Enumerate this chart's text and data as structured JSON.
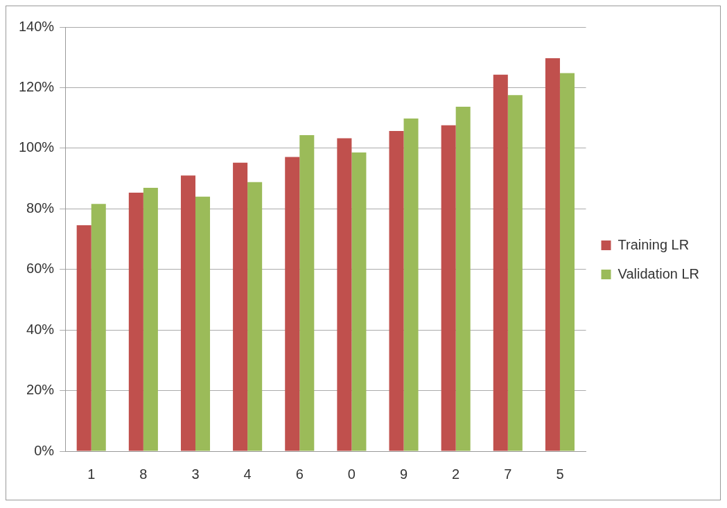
{
  "chart_data": {
    "type": "bar",
    "categories": [
      "1",
      "8",
      "3",
      "4",
      "6",
      "0",
      "9",
      "2",
      "7",
      "5"
    ],
    "series": [
      {
        "name": "Training LR",
        "color": "#c0504d",
        "values": [
          74.6,
          85.3,
          91.0,
          95.2,
          97.1,
          103.3,
          105.7,
          107.6,
          124.3,
          129.7
        ]
      },
      {
        "name": "Validation LR",
        "color": "#9bbb59",
        "values": [
          81.6,
          86.9,
          84.0,
          88.8,
          104.3,
          98.6,
          109.8,
          113.7,
          117.5,
          124.8
        ]
      }
    ],
    "ylim": [
      0,
      140
    ],
    "yticks": [
      {
        "value": 0,
        "label": "0%"
      },
      {
        "value": 20,
        "label": "20%"
      },
      {
        "value": 40,
        "label": "40%"
      },
      {
        "value": 60,
        "label": "60%"
      },
      {
        "value": 80,
        "label": "80%"
      },
      {
        "value": 100,
        "label": "100%"
      },
      {
        "value": 120,
        "label": "120%"
      },
      {
        "value": 140,
        "label": "140%"
      }
    ],
    "grid": "y",
    "legend": "right"
  }
}
